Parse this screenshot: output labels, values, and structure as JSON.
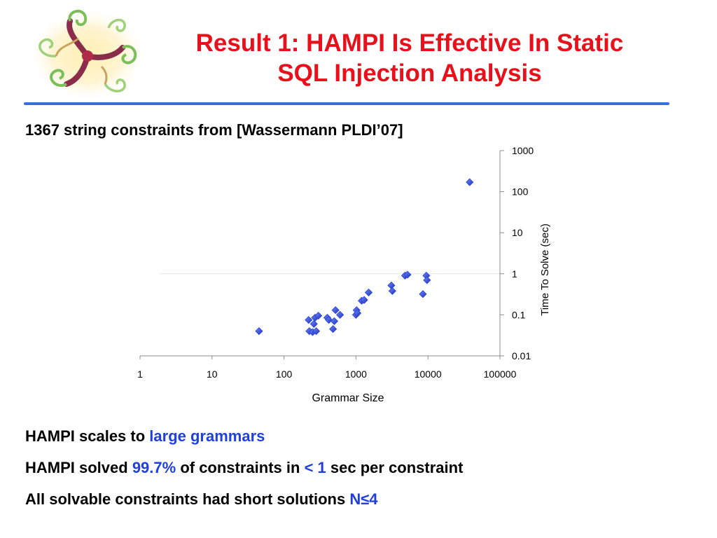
{
  "slide": {
    "title_line1": "Result 1: HAMPI Is Effective In Static",
    "title_line2": "SQL Injection Analysis",
    "subtitle": "1367 string constraints from [Wassermann PLDI’07]"
  },
  "bullets": [
    {
      "parts": [
        "HAMPI scales to ",
        "large grammars"
      ]
    },
    {
      "parts": [
        "HAMPI solved ",
        "99.7%",
        " of constraints in ",
        "< 1",
        " sec per constraint"
      ]
    },
    {
      "parts": [
        "All solvable constraints had short solutions ",
        "N≤4"
      ]
    }
  ],
  "colors": {
    "title": "#e8101a",
    "accent_rule": "#3b6fd8",
    "highlight": "#1f3fe0",
    "marker": "#2a3fd6"
  },
  "chart_data": {
    "type": "scatter",
    "xlabel": "Grammar Size",
    "ylabel": "Time To Solve (sec)",
    "x_scale": "log",
    "y_scale": "log",
    "xlim": [
      1,
      100000
    ],
    "ylim": [
      0.01,
      1000
    ],
    "x_ticks": [
      "1",
      "10",
      "100",
      "1000",
      "10000",
      "100000"
    ],
    "y_ticks": [
      "1000",
      "100",
      "10",
      "1",
      "0.1",
      "0.01"
    ],
    "marker": "diamond",
    "grid": false,
    "points": [
      {
        "x": 45,
        "y": 0.04
      },
      {
        "x": 220,
        "y": 0.075
      },
      {
        "x": 225,
        "y": 0.04
      },
      {
        "x": 250,
        "y": 0.038
      },
      {
        "x": 260,
        "y": 0.06
      },
      {
        "x": 270,
        "y": 0.085
      },
      {
        "x": 280,
        "y": 0.04
      },
      {
        "x": 300,
        "y": 0.095
      },
      {
        "x": 400,
        "y": 0.085
      },
      {
        "x": 420,
        "y": 0.075
      },
      {
        "x": 480,
        "y": 0.045
      },
      {
        "x": 500,
        "y": 0.07
      },
      {
        "x": 520,
        "y": 0.13
      },
      {
        "x": 600,
        "y": 0.1
      },
      {
        "x": 1000,
        "y": 0.1
      },
      {
        "x": 1020,
        "y": 0.13
      },
      {
        "x": 1050,
        "y": 0.11
      },
      {
        "x": 1200,
        "y": 0.22
      },
      {
        "x": 1300,
        "y": 0.23
      },
      {
        "x": 1500,
        "y": 0.35
      },
      {
        "x": 3100,
        "y": 0.52
      },
      {
        "x": 3200,
        "y": 0.38
      },
      {
        "x": 4800,
        "y": 0.9
      },
      {
        "x": 5200,
        "y": 0.95
      },
      {
        "x": 8500,
        "y": 0.32
      },
      {
        "x": 9500,
        "y": 0.9
      },
      {
        "x": 9700,
        "y": 0.7
      },
      {
        "x": 38000,
        "y": 170
      }
    ]
  }
}
